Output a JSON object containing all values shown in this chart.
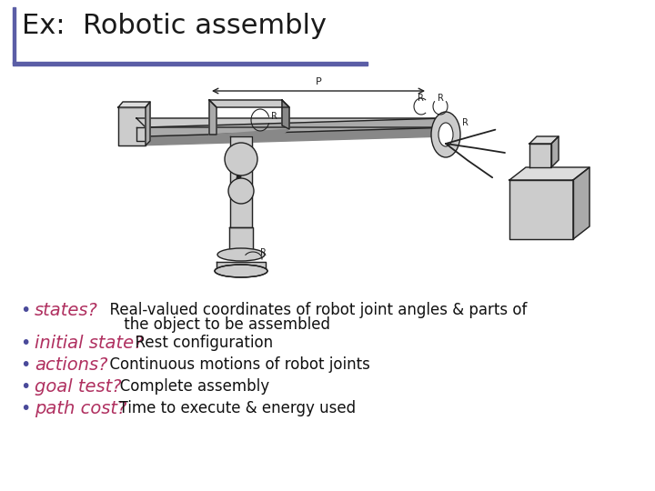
{
  "title": "Ex:  Robotic assembly",
  "title_color": "#1a1a1a",
  "title_fontsize": 22,
  "title_bar_color": "#5b5ea6",
  "bg_color": "#ffffff",
  "bullet_color": "#4a4a9a",
  "red_color": "#b03060",
  "black_color": "#111111",
  "bullet_items": [
    {
      "keyword": "states?",
      "text1": "  Real-valued coordinates of robot joint angles & parts of",
      "text2": "     the object to be assembled",
      "two_line": true
    },
    {
      "keyword": "initial state?",
      "text1": "  Rest configuration",
      "text2": "",
      "two_line": false
    },
    {
      "keyword": "actions?",
      "text1": "  Continuous motions of robot joints",
      "text2": "",
      "two_line": false
    },
    {
      "keyword": "goal test?",
      "text1": "   Complete assembly",
      "text2": "",
      "two_line": false
    },
    {
      "keyword": "path cost?",
      "text1": "  Time to execute & energy used",
      "text2": "",
      "two_line": false
    }
  ],
  "keyword_fontsize": 14,
  "text_fontsize": 12,
  "bullet_fontsize": 14
}
